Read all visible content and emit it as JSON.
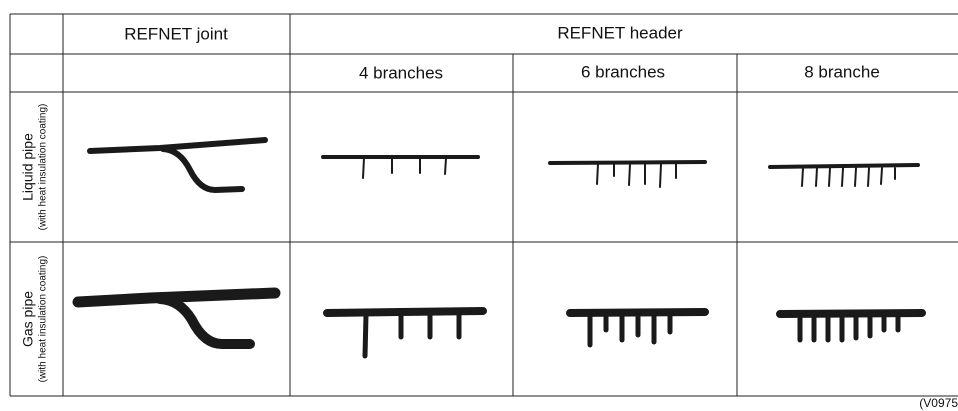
{
  "table": {
    "columns": [
      "REFNET joint",
      "REFNET header"
    ],
    "subcolumns": [
      "4 branches",
      "6 branches",
      "8 branche"
    ],
    "rows": [
      {
        "label": "Liquid pipe",
        "note": "(with heat insulation coating)"
      },
      {
        "label": "Gas pipe",
        "note": "(with heat insulation coating)"
      }
    ]
  },
  "figure_code": "(V0975"
}
